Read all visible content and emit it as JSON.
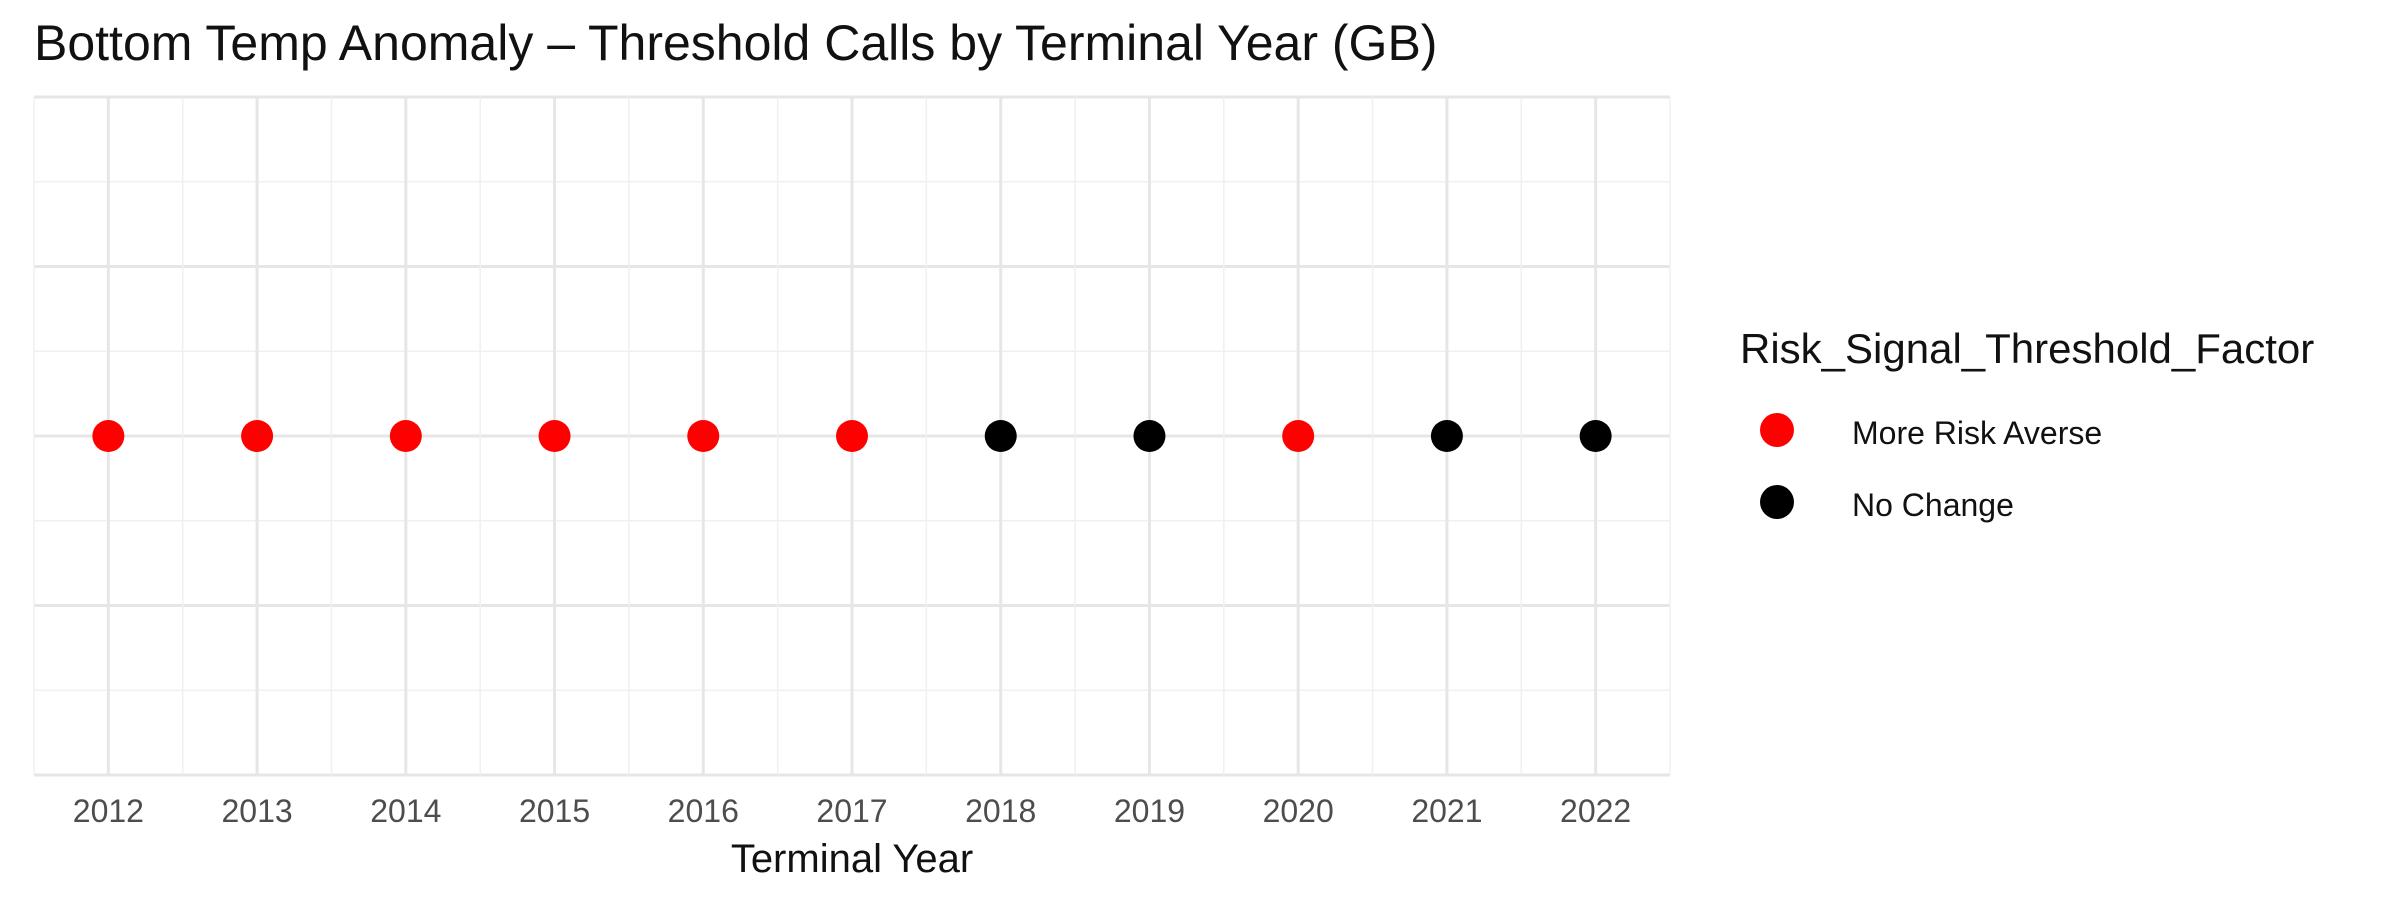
{
  "chart_data": {
    "type": "scatter",
    "title": "Bottom Temp Anomaly – Threshold Calls by Terminal Year (GB)",
    "xlabel": "Terminal Year",
    "ylabel": "",
    "x": [
      2012,
      2013,
      2014,
      2015,
      2016,
      2017,
      2018,
      2019,
      2020,
      2021,
      2022
    ],
    "categories": [
      "More Risk Averse",
      "More Risk Averse",
      "More Risk Averse",
      "More Risk Averse",
      "More Risk Averse",
      "More Risk Averse",
      "No Change",
      "No Change",
      "More Risk Averse",
      "No Change",
      "No Change"
    ],
    "xlim": [
      2011.5,
      2022.5
    ],
    "grid": true,
    "legend": {
      "title": "Risk_Signal_Threshold_Factor",
      "placement": "right",
      "items": [
        {
          "label": "More Risk Averse",
          "color": "#ff0000"
        },
        {
          "label": "No Change",
          "color": "#000000"
        }
      ]
    }
  }
}
